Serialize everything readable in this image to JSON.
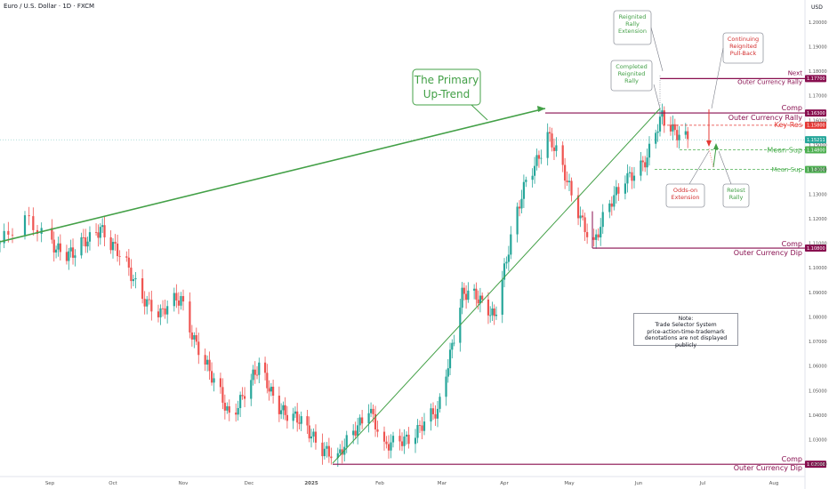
{
  "header": {
    "symbol_title": "Euro / U.S. Dollar · 1D · FXCM",
    "currency": "USD"
  },
  "colors": {
    "bull": "#26a69a",
    "bear": "#ef5350",
    "primary_green": "#43a047",
    "comp_purple": "#880e4f",
    "key_red": "#e53935",
    "mean_green": "#4caf50"
  },
  "chart_data": {
    "type": "candlestick",
    "title": "Euro / U.S. Dollar · 1D · FXCM",
    "y_unit": "USD",
    "ylim": [
      1.015,
      1.206
    ],
    "y_ticks": [
      "1.20000",
      "1.19000",
      "1.18000",
      "1.17000",
      "1.16000",
      "1.15000",
      "1.14000",
      "1.13000",
      "1.12000",
      "1.11000",
      "1.10000",
      "1.09000",
      "1.08000",
      "1.07000",
      "1.06000",
      "1.05000",
      "1.04000",
      "1.03000",
      "1.02000"
    ],
    "x_ticks": [
      "Sep",
      "Oct",
      "Nov",
      "Dec",
      "2025",
      "Feb",
      "Mar",
      "Apr",
      "May",
      "Jun",
      "Jul",
      "Aug"
    ],
    "price_path": [
      [
        "Aug 20",
        1.11
      ],
      [
        "Aug 26",
        1.118
      ],
      [
        "Sep 6",
        1.108
      ],
      [
        "Sep 12",
        1.104
      ],
      [
        "Sep 25",
        1.118
      ],
      [
        "Oct 1",
        1.108
      ],
      [
        "Oct 14",
        1.09
      ],
      [
        "Oct 22",
        1.08
      ],
      [
        "Oct 31",
        1.088
      ],
      [
        "Nov 6",
        1.072
      ],
      [
        "Nov 14",
        1.054
      ],
      [
        "Nov 22",
        1.041
      ],
      [
        "Dec 6",
        1.058
      ],
      [
        "Dec 20",
        1.04
      ],
      [
        "Jan 2",
        1.032
      ],
      [
        "Jan 13",
        1.021
      ],
      [
        "Jan 27",
        1.045
      ],
      [
        "Feb 3",
        1.025
      ],
      [
        "Feb 10",
        1.03
      ],
      [
        "Feb 27",
        1.04
      ],
      [
        "Mar 4",
        1.062
      ],
      [
        "Mar 11",
        1.09
      ],
      [
        "Mar 27",
        1.082
      ],
      [
        "Apr 11",
        1.135
      ],
      [
        "Apr 21",
        1.155
      ],
      [
        "Apr 30",
        1.134
      ],
      [
        "May 12",
        1.11
      ],
      [
        "May 26",
        1.138
      ],
      [
        "Jun 5",
        1.143
      ],
      [
        "Jun 12",
        1.162
      ],
      [
        "Jun 24",
        1.1521
      ]
    ],
    "levels": [
      {
        "label_top": "Next",
        "label_bottom": "Outer Currency Rally",
        "tag": "1.17700",
        "value": 1.177
      },
      {
        "label_top": "Comp",
        "label_bottom": "Outer Currency Rally",
        "tag": "1.16300",
        "value": 1.163
      },
      {
        "label": "Key Res",
        "tag": "1.15800",
        "value": 1.158
      },
      {
        "label": "Mean Sup",
        "tag": "1.14800",
        "value": 1.148
      },
      {
        "label": "Mean Sup",
        "tag": "1.14000",
        "value": 1.14
      },
      {
        "label_top": "Comp",
        "label_bottom": "Outer Currency Dip",
        "tag": "1.10800",
        "value": 1.108
      },
      {
        "label_top": "Comp",
        "label_bottom": "Outer Currency Dip",
        "tag": "1.02000",
        "value": 1.02
      }
    ],
    "current_price": {
      "tag": "1.15211",
      "value": 1.15211
    }
  },
  "annotations": {
    "primary_uptrend": [
      "The Primary",
      "Up-Trend"
    ],
    "reignited_rally_extension": [
      "Reignited",
      "Rally",
      "Extension"
    ],
    "completed_reignited_rally": [
      "Completed",
      "Reignited",
      "Rally"
    ],
    "continuing_pullback": [
      "Continuing",
      "Reignited",
      "Pull-Back"
    ],
    "odds_on_extension": [
      "Odds-on",
      "Extension"
    ],
    "retest_rally": [
      "Retest",
      "Rally"
    ]
  },
  "note": {
    "title": "Note:",
    "lines": [
      "Trade Selector System",
      "price-action-time-trademark",
      "denotations are not displayed publicly"
    ]
  }
}
